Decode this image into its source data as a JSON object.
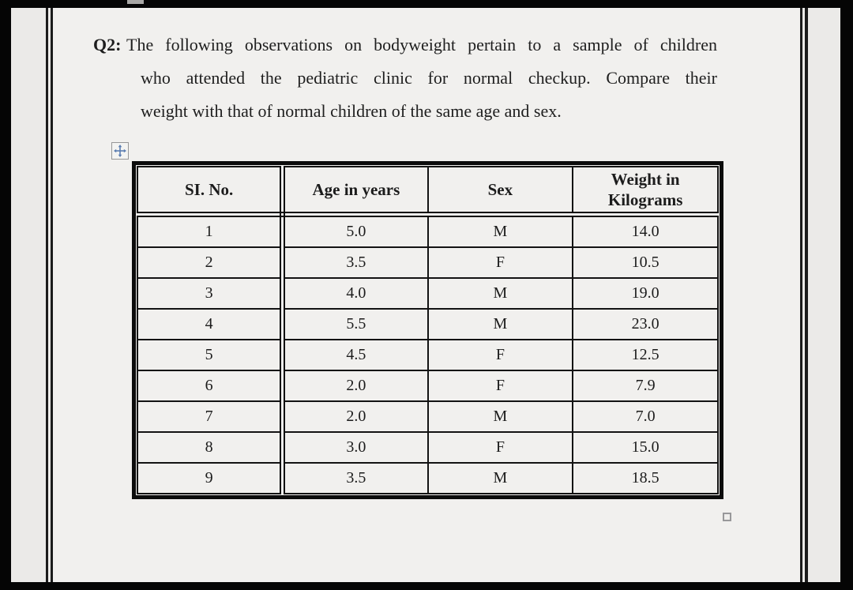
{
  "question": {
    "label": "Q2:",
    "lines": [
      "The following observations on bodyweight pertain to a sample of children",
      "who attended the pediatric clinic for normal checkup. Compare their",
      "weight with that of normal children of the same age and sex."
    ]
  },
  "table": {
    "headers": [
      "SI. No.",
      "Age in years",
      "Sex",
      "Weight in Kilograms"
    ],
    "rows": [
      [
        "1",
        "5.0",
        "M",
        "14.0"
      ],
      [
        "2",
        "3.5",
        "F",
        "10.5"
      ],
      [
        "3",
        "4.0",
        "M",
        "19.0"
      ],
      [
        "4",
        "5.5",
        "M",
        "23.0"
      ],
      [
        "5",
        "4.5",
        "F",
        "12.5"
      ],
      [
        "6",
        "2.0",
        "F",
        "7.9"
      ],
      [
        "7",
        "2.0",
        "M",
        "7.0"
      ],
      [
        "8",
        "3.0",
        "F",
        "15.0"
      ],
      [
        "9",
        "3.5",
        "M",
        "18.5"
      ]
    ]
  },
  "icons": {
    "move_handle": "move-cross-icon",
    "resize_handle": "resize-square-icon"
  },
  "colors": {
    "page_background": "#f1f0ee",
    "margin_background": "#ebeae8",
    "frame_black": "#050505",
    "table_border": "#0c0c0c",
    "text": "#1e1e1e",
    "move_icon_blue": "#5b7db1"
  }
}
